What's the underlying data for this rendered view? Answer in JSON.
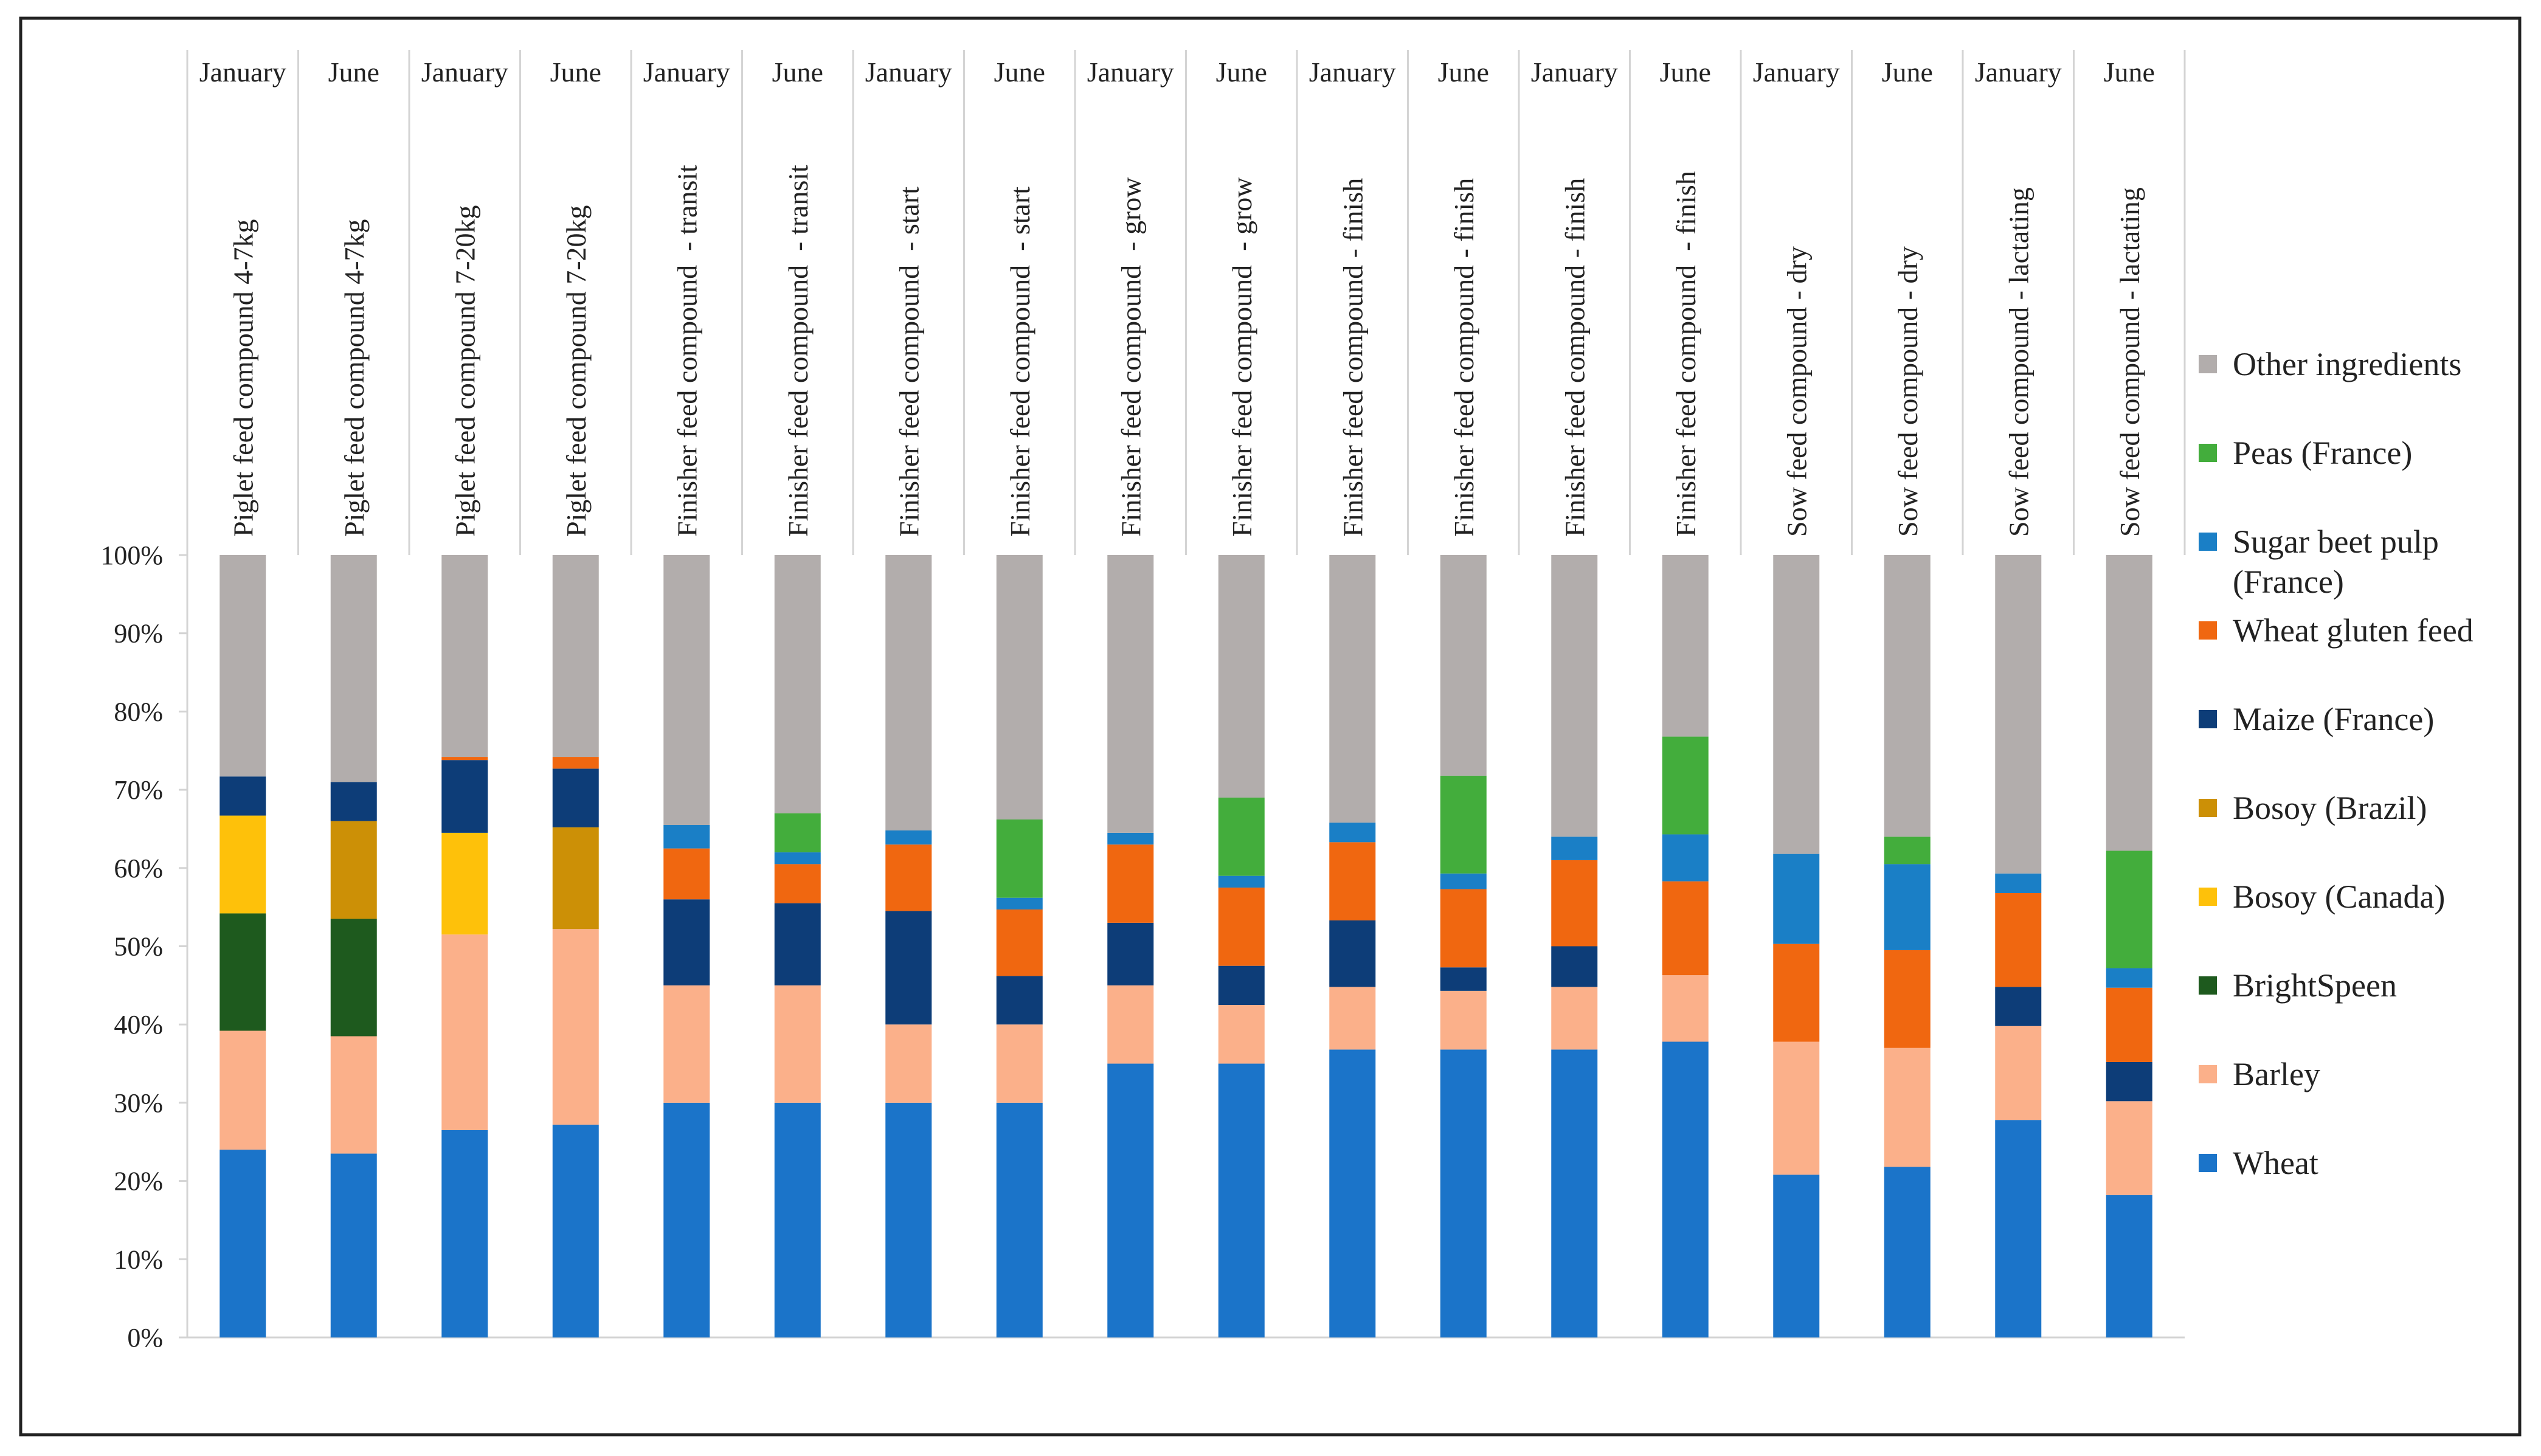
{
  "chart_data": {
    "type": "bar",
    "stacked": true,
    "stack_mode": "percent",
    "title": "",
    "xlabel": "",
    "ylabel": "",
    "ylim": [
      0,
      100
    ],
    "y_ticks": [
      "0%",
      "10%",
      "20%",
      "30%",
      "40%",
      "50%",
      "60%",
      "70%",
      "80%",
      "90%",
      "100%"
    ],
    "legend_position": "right",
    "months": [
      "January",
      "June",
      "January",
      "June",
      "January",
      "June",
      "January",
      "June",
      "January",
      "June",
      "January",
      "June",
      "January",
      "June",
      "January",
      "June",
      "January",
      "June"
    ],
    "categories": [
      "Piglet feed compound 4-7kg",
      "Piglet feed compound 4-7kg",
      "Piglet feed compound 7-20kg",
      "Piglet feed compound 7-20kg",
      "Finisher feed compound  - transit",
      "Finisher feed compound  - transit",
      "Finisher feed compound  - start",
      "Finisher feed compound  - start",
      "Finisher feed compound  - grow",
      "Finisher feed compound  - grow",
      "Finisher feed compound - finish",
      "Finisher feed compound - finish",
      "Finisher feed compound - finish",
      "Finisher feed compound  - finish",
      "Sow feed compound - dry",
      "Sow feed compound - dry",
      "Sow feed compound - lactating",
      "Sow feed compound - lactating"
    ],
    "series": [
      {
        "name": "Wheat",
        "color": "#1b74c9",
        "values": [
          24,
          23.5,
          26.5,
          27.2,
          30,
          30,
          30,
          30,
          35,
          35,
          36.8,
          36.8,
          36.8,
          37.8,
          20.8,
          21.8,
          27.8,
          18.2
        ]
      },
      {
        "name": "Barley",
        "color": "#fbb08a",
        "values": [
          15.2,
          15,
          25,
          25,
          15,
          15,
          10,
          10,
          10,
          7.5,
          8,
          7.5,
          8,
          8.5,
          17,
          15.2,
          12,
          12
        ]
      },
      {
        "name": "BrightSpeen",
        "color": "#1e5a1e",
        "values": [
          15,
          15,
          0,
          0,
          0,
          0,
          0,
          0,
          0,
          0,
          0,
          0,
          0,
          0,
          0,
          0,
          0,
          0
        ]
      },
      {
        "name": "Bosoy (Canada)",
        "color": "#fec10a",
        "values": [
          12.5,
          0,
          13,
          0,
          0,
          0,
          0,
          0,
          0,
          0,
          0,
          0,
          0,
          0,
          0,
          0,
          0,
          0
        ]
      },
      {
        "name": "Bosoy (Brazil)",
        "color": "#cc9006",
        "values": [
          0,
          12.5,
          0,
          13,
          0,
          0,
          0,
          0,
          0,
          0,
          0,
          0,
          0,
          0,
          0,
          0,
          0,
          0
        ]
      },
      {
        "name": "Maize (France)",
        "color": "#0d3d78",
        "values": [
          5,
          5,
          9.3,
          7.5,
          11,
          10.5,
          14.5,
          6.2,
          8,
          5,
          8.5,
          3,
          5.2,
          0,
          0,
          0,
          5,
          5
        ]
      },
      {
        "name": "Wheat gluten feed",
        "color": "#f06710",
        "values": [
          0,
          0,
          0.4,
          1.5,
          6.5,
          5,
          8.5,
          8.5,
          10,
          10,
          10,
          10,
          11,
          12,
          12.5,
          12.5,
          12,
          9.5
        ]
      },
      {
        "name": "Sugar beet pulp (France)",
        "color": "#1a7fc6",
        "values": [
          0,
          0,
          0,
          0,
          3,
          1.5,
          1.8,
          1.5,
          1.5,
          1.5,
          2.5,
          2,
          3,
          6,
          11.5,
          11,
          2.5,
          2.5
        ]
      },
      {
        "name": "Peas (France)",
        "color": "#43ad3c",
        "values": [
          0,
          0,
          0,
          0,
          0,
          5,
          0,
          10,
          0,
          10,
          0,
          12.5,
          0,
          12.5,
          0,
          3.5,
          0,
          15
        ]
      },
      {
        "name": "Other ingredients",
        "color": "#b2adac",
        "values": [
          28.3,
          29,
          25.8,
          25.8,
          34.5,
          33,
          35.2,
          33.8,
          35.5,
          31,
          34.2,
          28.2,
          36,
          23.2,
          38.2,
          36,
          40.7,
          37.8
        ]
      }
    ],
    "legend_order": [
      "Other ingredients",
      "Peas (France)",
      "Sugar beet pulp (France)",
      "Wheat gluten feed",
      "Maize (France)",
      "Bosoy (Brazil)",
      "Bosoy (Canada)",
      "BrightSpeen",
      "Barley",
      "Wheat"
    ],
    "legend_lines": {
      "Sugar beet pulp (France)": [
        "Sugar beet pulp",
        "(France)"
      ]
    }
  }
}
